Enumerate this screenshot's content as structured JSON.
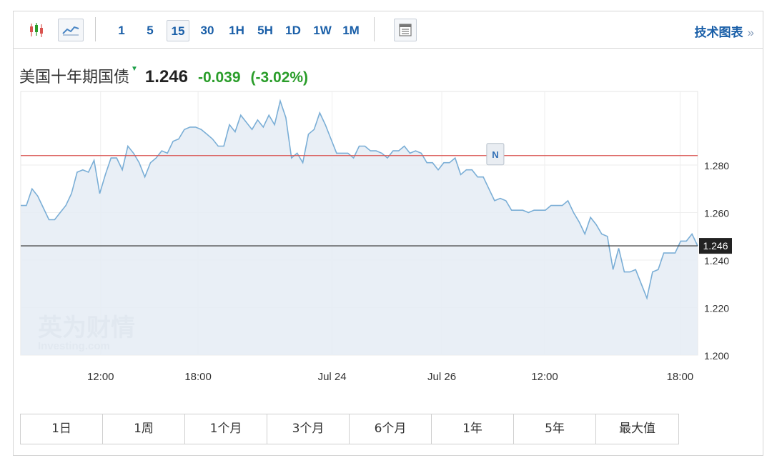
{
  "toolbar": {
    "chart_type_icons": [
      "candlestick-icon",
      "line-chart-icon"
    ],
    "intervals": [
      "1",
      "5",
      "15",
      "30",
      "1H",
      "5H",
      "1D",
      "1W",
      "1M"
    ],
    "active_interval": "15",
    "table_icon": "table-view-icon",
    "technical_chart_label": "技术图表",
    "technical_chart_arrow": "»"
  },
  "quote": {
    "name": "美国十年期国债",
    "direction_icon": "▼",
    "price": "1.246",
    "change": "-0.039",
    "change_percent": "(-3.02%)"
  },
  "watermark": {
    "line1": "英为财情",
    "line2": "Investing",
    "line2_suffix": ".com"
  },
  "colors": {
    "line": "#7aaed6",
    "area": "#e5ecf5",
    "reference_line": "#d9534f",
    "current_line": "#222222",
    "positive": "#2a9d2a",
    "link": "#1a5fa8"
  },
  "chart_data": {
    "type": "area",
    "title": "美国十年期国债",
    "x_tick_labels": [
      "12:00",
      "18:00",
      "Jul 24",
      "Jul 26",
      "12:00",
      "18:00"
    ],
    "y_tick_labels": [
      "1.200",
      "1.220",
      "1.240",
      "1.260",
      "1.280"
    ],
    "ylim": [
      1.2,
      1.311
    ],
    "last_value": 1.246,
    "last_value_label": "1.246",
    "reference_value": 1.284,
    "annotation": {
      "label": "N",
      "index": 84
    },
    "values": [
      1.263,
      1.263,
      1.27,
      1.267,
      1.262,
      1.257,
      1.257,
      1.26,
      1.263,
      1.268,
      1.277,
      1.278,
      1.277,
      1.282,
      1.268,
      1.276,
      1.283,
      1.283,
      1.278,
      1.288,
      1.285,
      1.281,
      1.275,
      1.281,
      1.283,
      1.286,
      1.285,
      1.29,
      1.291,
      1.295,
      1.296,
      1.296,
      1.295,
      1.293,
      1.291,
      1.288,
      1.288,
      1.297,
      1.294,
      1.301,
      1.298,
      1.295,
      1.299,
      1.296,
      1.301,
      1.297,
      1.307,
      1.3,
      1.283,
      1.285,
      1.281,
      1.293,
      1.295,
      1.302,
      1.297,
      1.291,
      1.285,
      1.285,
      1.285,
      1.283,
      1.288,
      1.288,
      1.286,
      1.286,
      1.285,
      1.283,
      1.286,
      1.286,
      1.288,
      1.285,
      1.286,
      1.285,
      1.281,
      1.281,
      1.278,
      1.281,
      1.281,
      1.283,
      1.276,
      1.278,
      1.278,
      1.275,
      1.275,
      1.27,
      1.265,
      1.266,
      1.265,
      1.261,
      1.261,
      1.261,
      1.26,
      1.261,
      1.261,
      1.261,
      1.263,
      1.263,
      1.263,
      1.265,
      1.26,
      1.256,
      1.251,
      1.258,
      1.255,
      1.251,
      1.25,
      1.236,
      1.245,
      1.235,
      1.235,
      1.236,
      1.23,
      1.224,
      1.235,
      1.236,
      1.243,
      1.243,
      1.243,
      1.248,
      1.248,
      1.251,
      1.246
    ]
  },
  "ranges": [
    "1日",
    "1周",
    "1个月",
    "3个月",
    "6个月",
    "1年",
    "5年",
    "最大值"
  ]
}
